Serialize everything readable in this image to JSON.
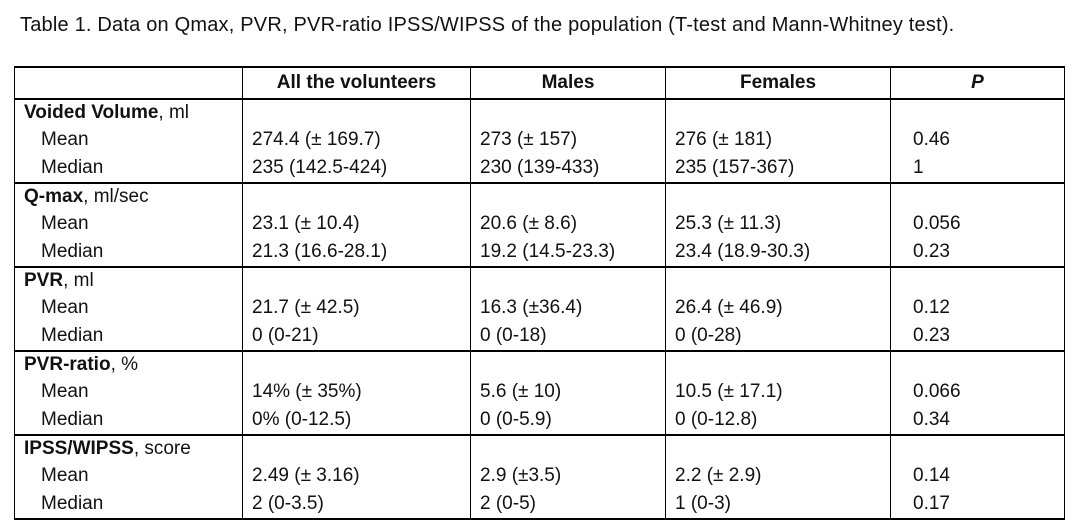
{
  "caption": "Table 1. Data on Qmax, PVR, PVR-ratio IPSS/WIPSS of the population (T-test and Mann-Whitney test).",
  "headers": [
    "",
    "All the volunteers",
    "Males",
    "Females",
    "P"
  ],
  "sections": [
    {
      "title": "Voided Volume",
      "unit": ", ml",
      "rows": [
        {
          "label": "Mean",
          "all": "274.4 (± 169.7)",
          "males": "273 (± 157)",
          "females": "276 (± 181)",
          "p": "0.46"
        },
        {
          "label": "Median",
          "all": "235 (142.5-424)",
          "males": "230 (139-433)",
          "females": "235 (157-367)",
          "p": "1"
        }
      ]
    },
    {
      "title": "Q-max",
      "unit": ", ml/sec",
      "rows": [
        {
          "label": "Mean",
          "all": "23.1 (± 10.4)",
          "males": "20.6 (± 8.6)",
          "females": "25.3 (± 11.3)",
          "p": "0.056"
        },
        {
          "label": "Median",
          "all": "21.3 (16.6-28.1)",
          "males": "19.2 (14.5-23.3)",
          "females": "23.4 (18.9-30.3)",
          "p": "0.23"
        }
      ]
    },
    {
      "title": "PVR",
      "unit": ", ml",
      "rows": [
        {
          "label": "Mean",
          "all": "21.7 (± 42.5)",
          "males": "16.3 (±36.4)",
          "females": "26.4 (± 46.9)",
          "p": "0.12"
        },
        {
          "label": "Median",
          "all": "0 (0-21)",
          "males": "0 (0-18)",
          "females": "0 (0-28)",
          "p": "0.23"
        }
      ]
    },
    {
      "title": "PVR-ratio",
      "unit": ", %",
      "rows": [
        {
          "label": "Mean",
          "all": "14% (± 35%)",
          "males": "5.6 (± 10)",
          "females": "10.5 (± 17.1)",
          "p": "0.066"
        },
        {
          "label": "Median",
          "all": "0% (0-12.5)",
          "males": "0 (0-5.9)",
          "females": "0 (0-12.8)",
          "p": "0.34"
        }
      ]
    },
    {
      "title": "IPSS/WIPSS",
      "unit": ", score",
      "rows": [
        {
          "label": "Mean",
          "all": "2.49 (± 3.16)",
          "males": "2.9 (±3.5)",
          "females": "2.2 (± 2.9)",
          "p": "0.14"
        },
        {
          "label": "Median",
          "all": "2 (0-3.5)",
          "males": "2 (0-5)",
          "females": "1 (0-3)",
          "p": "0.17"
        }
      ]
    }
  ]
}
